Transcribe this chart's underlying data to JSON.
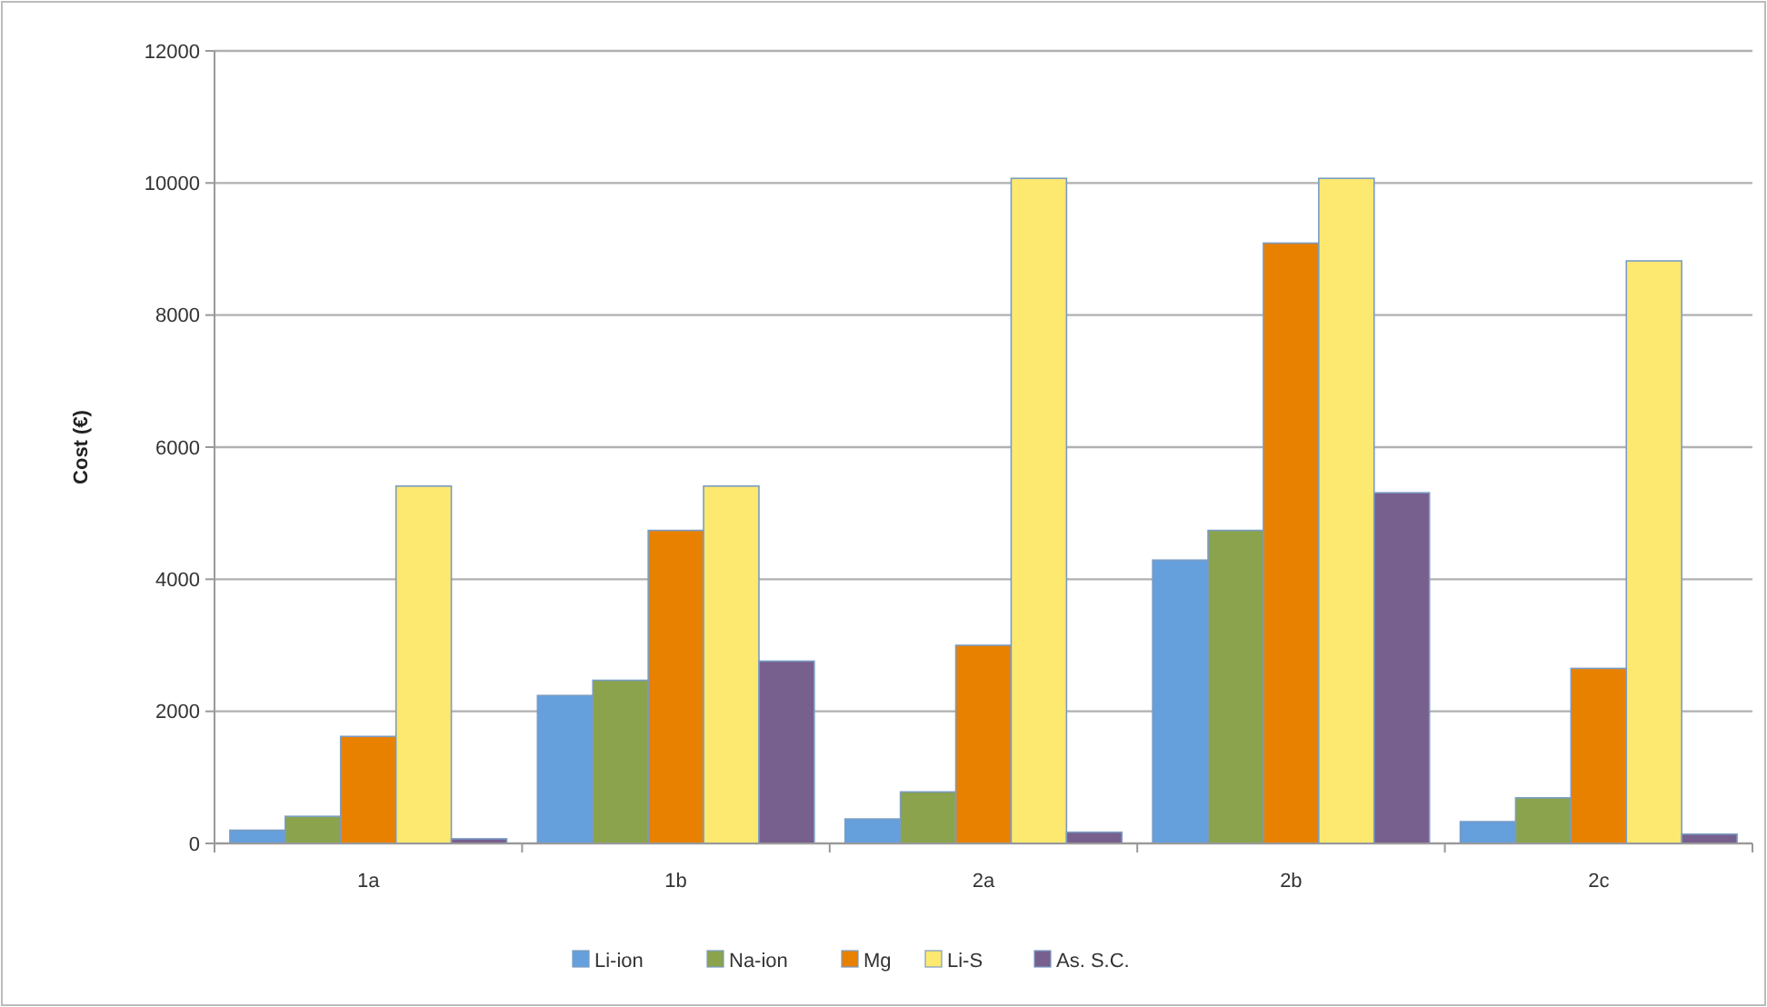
{
  "chart_data": {
    "type": "bar",
    "ylabel": "Cost (€)",
    "categories": [
      "1a",
      "1b",
      "2a",
      "2b",
      "2c"
    ],
    "series": [
      {
        "name": "Li-ion",
        "color": "#659fdc",
        "values": [
          200,
          2240,
          370,
          4290,
          330
        ]
      },
      {
        "name": "Na-ion",
        "color": "#8ba34c",
        "values": [
          410,
          2470,
          780,
          4740,
          690
        ]
      },
      {
        "name": "Mg",
        "color": "#e98100",
        "values": [
          1620,
          4740,
          3000,
          9090,
          2650
        ]
      },
      {
        "name": "Li-S",
        "color": "#fde870",
        "values": [
          5410,
          5410,
          10070,
          10070,
          8820
        ]
      },
      {
        "name": "As. S.C.",
        "color": "#775f8e",
        "values": [
          70,
          2760,
          170,
          5310,
          140
        ]
      }
    ],
    "ylim": [
      0,
      12000
    ],
    "yticks": [
      0,
      2000,
      4000,
      6000,
      8000,
      10000,
      12000
    ],
    "grid": "y",
    "legend": "bottom"
  }
}
